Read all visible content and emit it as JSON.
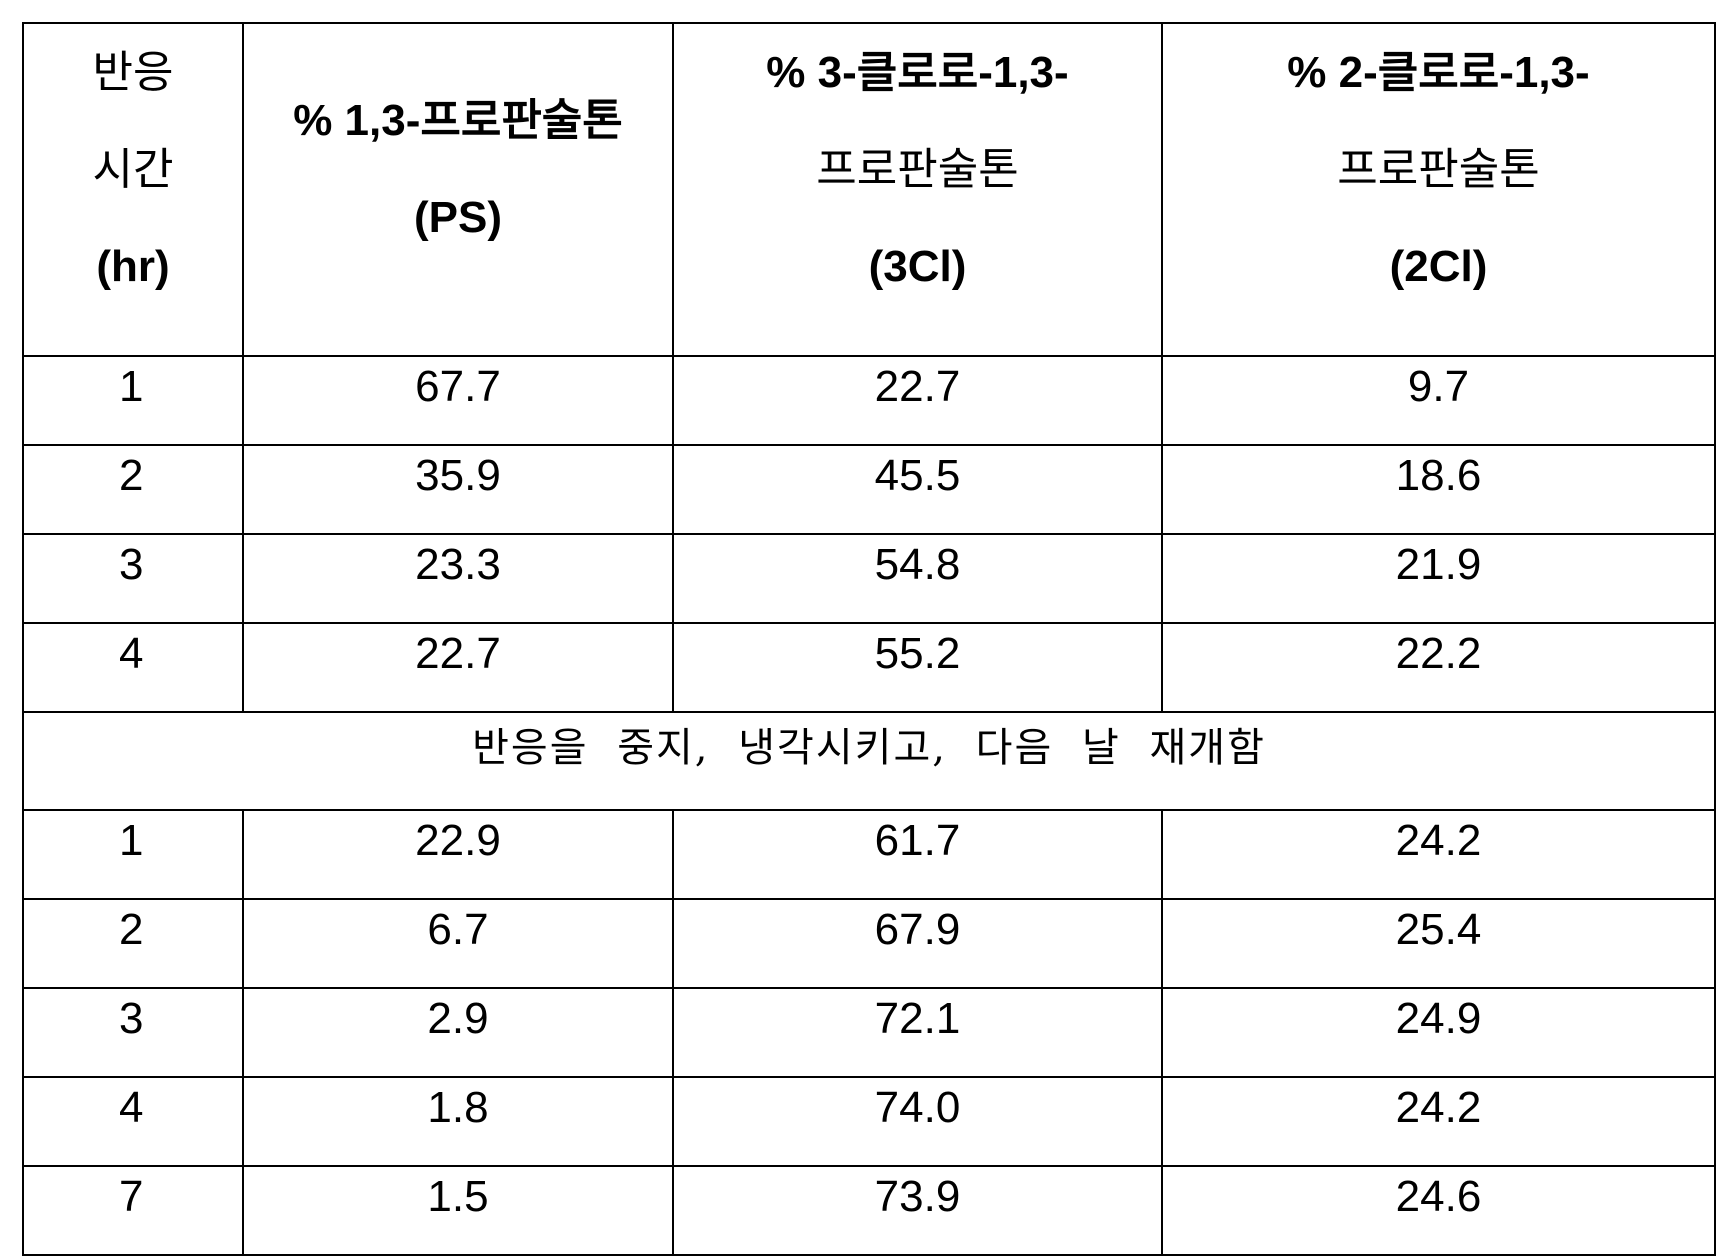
{
  "table": {
    "headers": [
      [
        "반응",
        "시간",
        "(hr)"
      ],
      [
        "% 1,3-프로판술톤",
        "(PS)"
      ],
      [
        "% 3-클로로-1,3-",
        "프로판술톤",
        "(3Cl)"
      ],
      [
        "% 2-클로로-1,3-",
        "프로판술톤",
        "(2Cl)"
      ]
    ],
    "rows_before": [
      [
        "1",
        "67.7",
        "22.7",
        "9.7"
      ],
      [
        "2",
        "35.9",
        "45.5",
        "18.6"
      ],
      [
        "3",
        "23.3",
        "54.8",
        "21.9"
      ],
      [
        "4",
        "22.7",
        "55.2",
        "22.2"
      ]
    ],
    "note": "반응을 중지, 냉각시키고, 다음 날 재개함",
    "rows_after": [
      [
        "1",
        "22.9",
        "61.7",
        "24.2"
      ],
      [
        "2",
        "6.7",
        "67.9",
        "25.4"
      ],
      [
        "3",
        "2.9",
        "72.1",
        "24.9"
      ],
      [
        "4",
        "1.8",
        "74.0",
        "24.2"
      ],
      [
        "7",
        "1.5",
        "73.9",
        "24.6"
      ]
    ]
  }
}
